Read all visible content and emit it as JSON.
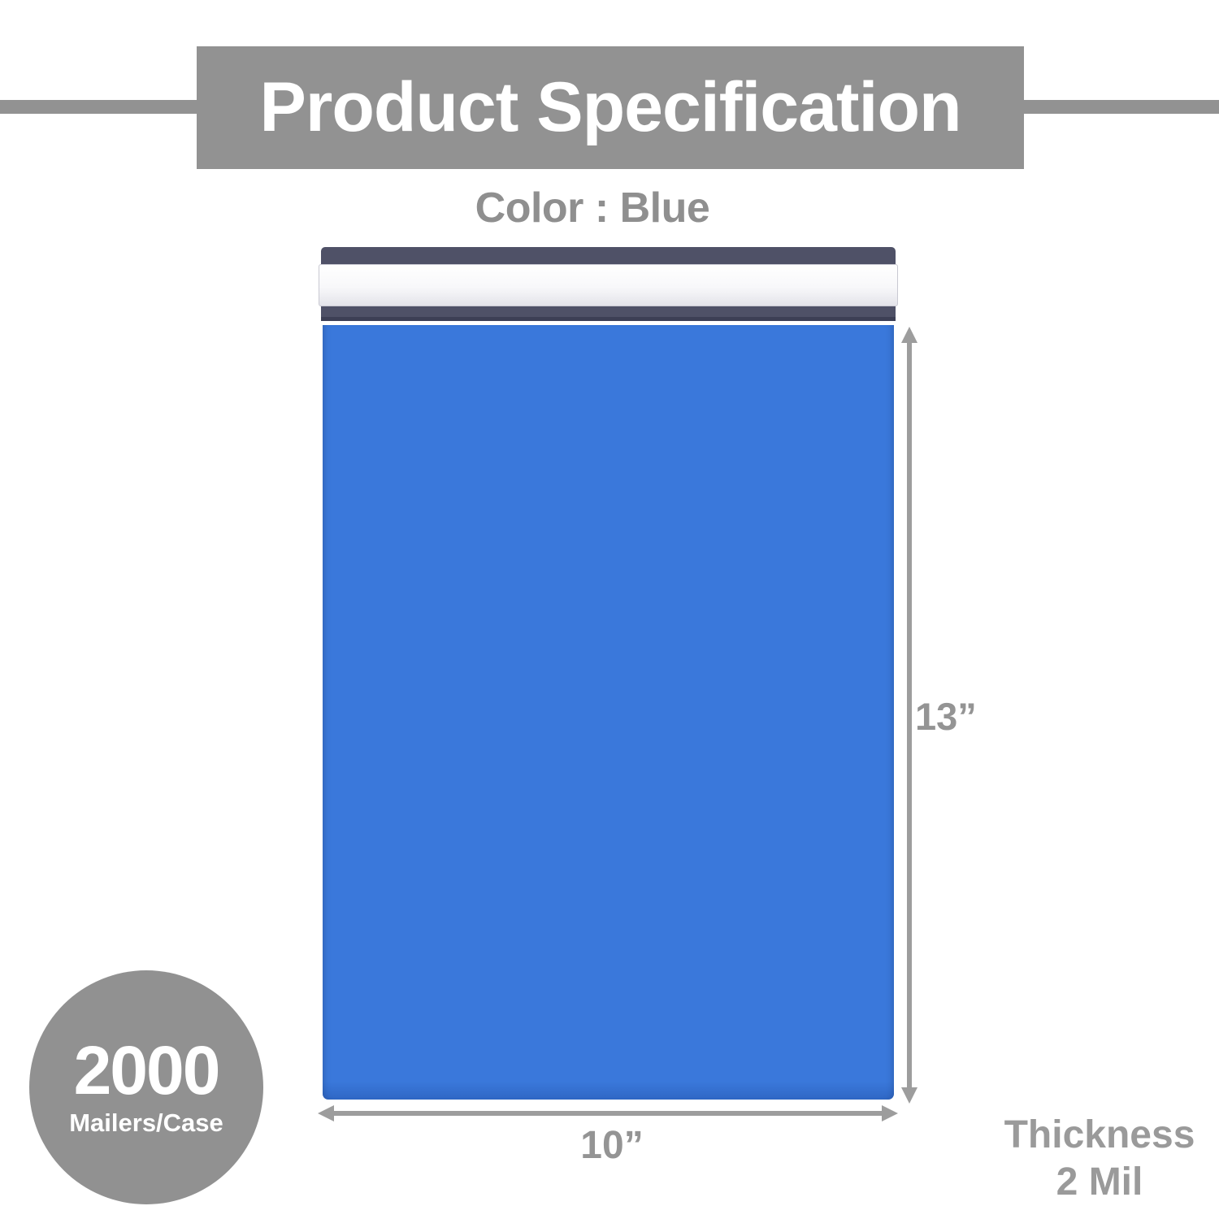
{
  "header": {
    "title": "Product Specification",
    "bg_color": "#929292",
    "text_color": "#ffffff",
    "accent_line_color": "#929292"
  },
  "subtitle": {
    "text": "Color : Blue",
    "text_color": "#8f8f8f"
  },
  "mailer": {
    "body_color": "#3a78db",
    "flap_color": "#4f5167",
    "flap_edge_color": "#3d3f55"
  },
  "dimensions": {
    "height_label": "13”",
    "width_label": "10”",
    "arrow_color": "#9d9d9d",
    "label_color": "#949494"
  },
  "badge": {
    "count": "2000",
    "unit": "Mailers/Case",
    "bg_color": "#919191",
    "text_color": "#ffffff"
  },
  "thickness": {
    "label": "Thickness",
    "value": "2 Mil",
    "text_color": "#9a9a9a"
  },
  "icons": {
    "height_arrow": "double-arrow-vertical-icon",
    "width_arrow": "double-arrow-horizontal-icon"
  }
}
